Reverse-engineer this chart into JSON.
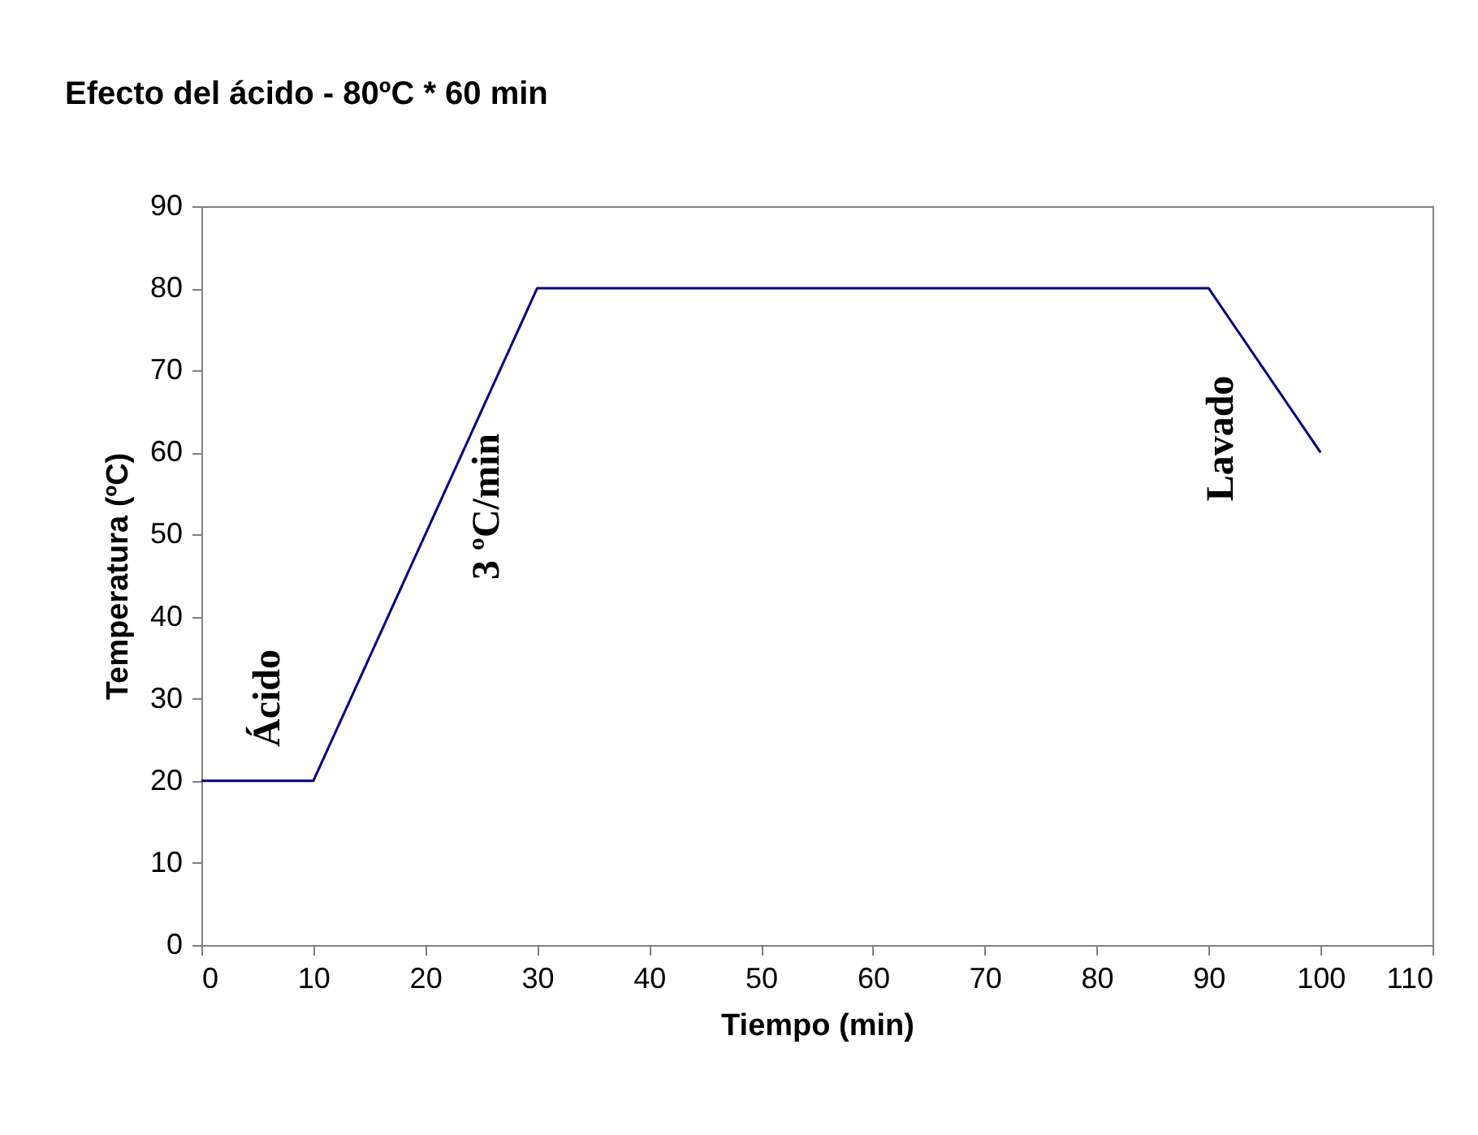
{
  "chart_data": {
    "type": "line",
    "title": "Efecto del ácido - 80ºC * 60 min",
    "xlabel": "Tiempo (min)",
    "ylabel": "Temperatura (ºC)",
    "x": [
      0,
      10,
      30,
      90,
      100
    ],
    "series": [
      {
        "color": "#000080",
        "values": [
          20,
          20,
          80,
          80,
          60
        ]
      }
    ],
    "xlim": [
      0,
      110
    ],
    "xticks": [
      0,
      10,
      20,
      30,
      40,
      50,
      60,
      70,
      80,
      90,
      100,
      110
    ],
    "ylim": [
      0,
      90
    ],
    "yticks": [
      0,
      10,
      20,
      30,
      40,
      50,
      60,
      70,
      80,
      90
    ],
    "grid": false,
    "marker": "none",
    "line_style": "solid",
    "annotations": [
      "Ácido",
      "3 ºC/min",
      "Lavado"
    ]
  }
}
